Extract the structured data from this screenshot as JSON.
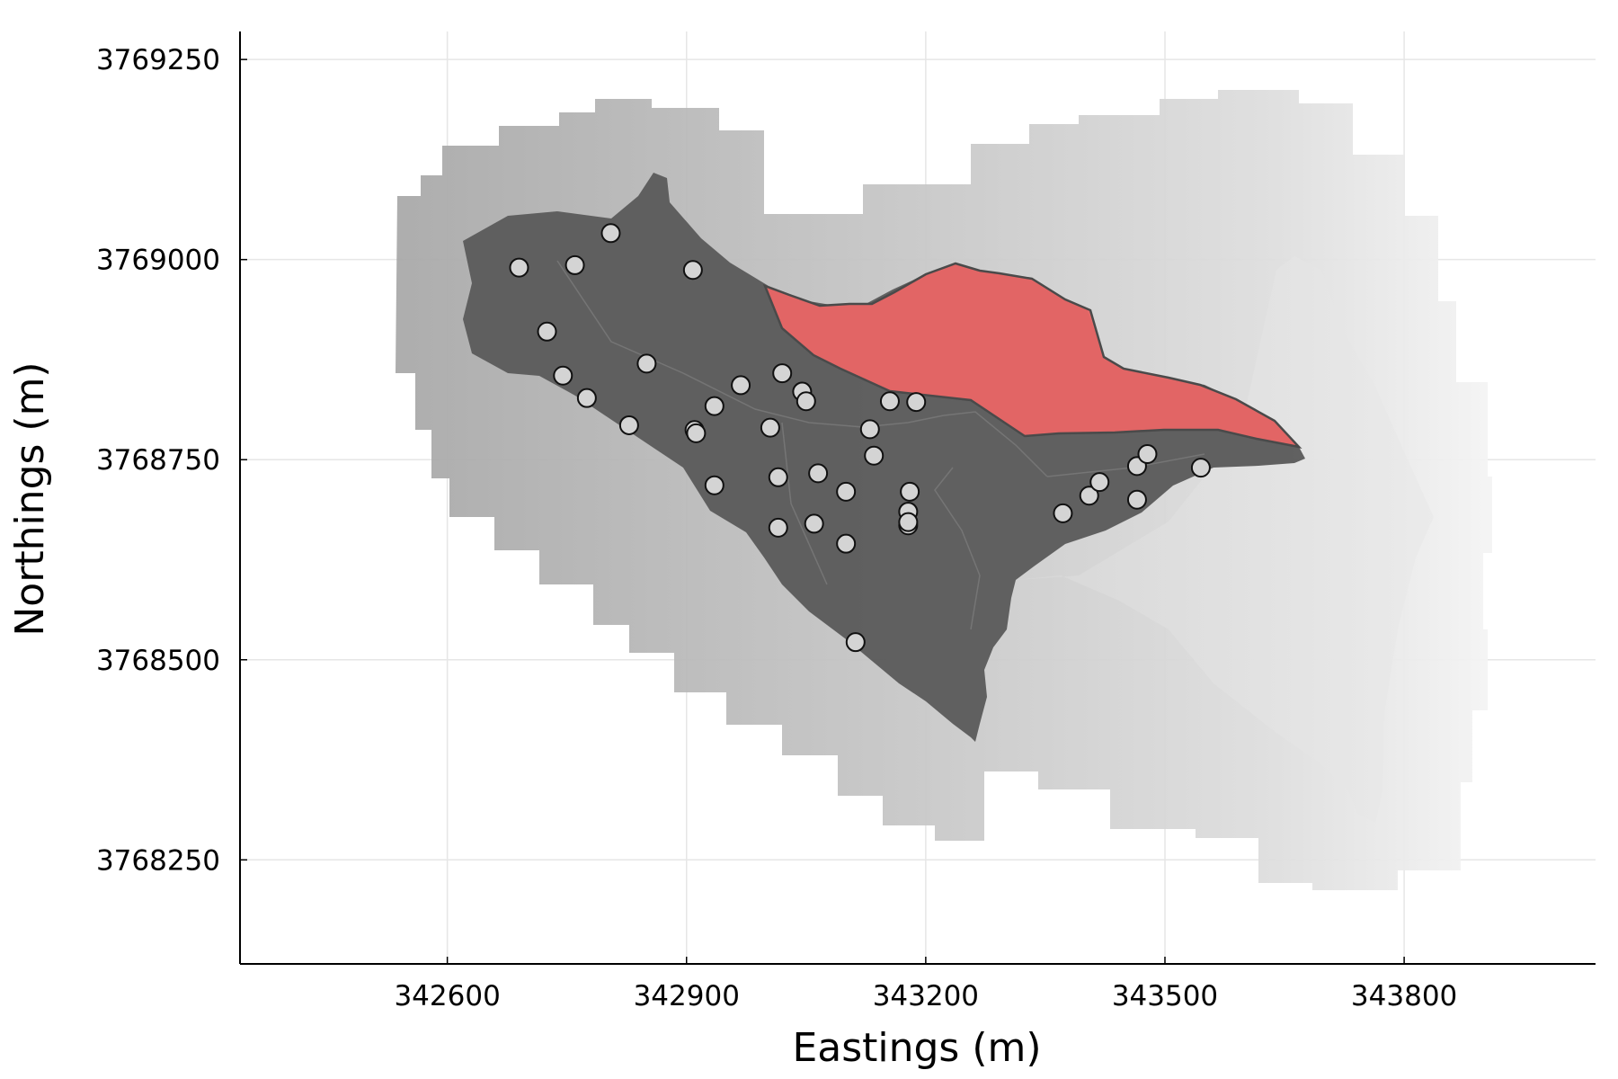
{
  "chart_data": {
    "type": "scatter",
    "xlabel": "Eastings (m)",
    "ylabel": "Northings (m)",
    "xlim": [
      342340,
      344040
    ],
    "ylim": [
      3768120,
      3769285
    ],
    "xticks": [
      342600,
      342900,
      343200,
      343500,
      343800
    ],
    "yticks": [
      3768250,
      3768500,
      3768750,
      3769000,
      3769250
    ],
    "grid": true,
    "legend": "none",
    "colors": {
      "dem_gradient_dark": "#a9a9a9",
      "dem_gradient_light": "#f4f4f4",
      "basin_fill": "#5c5c5c",
      "subbasin_fill": "#e96565",
      "subbasin_stroke": "#4a4a4a",
      "point_fill": "#d4d4d4",
      "point_stroke": "#111111"
    },
    "points": [
      {
        "x": 342690,
        "y": 3768990
      },
      {
        "x": 342760,
        "y": 3768993
      },
      {
        "x": 342805,
        "y": 3769033
      },
      {
        "x": 342908,
        "y": 3768987
      },
      {
        "x": 342725,
        "y": 3768910
      },
      {
        "x": 342745,
        "y": 3768855
      },
      {
        "x": 342775,
        "y": 3768827
      },
      {
        "x": 342850,
        "y": 3768870
      },
      {
        "x": 342828,
        "y": 3768793
      },
      {
        "x": 342910,
        "y": 3768787
      },
      {
        "x": 342912,
        "y": 3768783
      },
      {
        "x": 342935,
        "y": 3768817
      },
      {
        "x": 342968,
        "y": 3768843
      },
      {
        "x": 342935,
        "y": 3768718
      },
      {
        "x": 343020,
        "y": 3768858
      },
      {
        "x": 343045,
        "y": 3768835
      },
      {
        "x": 343050,
        "y": 3768823
      },
      {
        "x": 343005,
        "y": 3768790
      },
      {
        "x": 343015,
        "y": 3768728
      },
      {
        "x": 343015,
        "y": 3768665
      },
      {
        "x": 343065,
        "y": 3768733
      },
      {
        "x": 343060,
        "y": 3768670
      },
      {
        "x": 343100,
        "y": 3768710
      },
      {
        "x": 343100,
        "y": 3768645
      },
      {
        "x": 343130,
        "y": 3768788
      },
      {
        "x": 343135,
        "y": 3768755
      },
      {
        "x": 343155,
        "y": 3768823
      },
      {
        "x": 343188,
        "y": 3768822
      },
      {
        "x": 343180,
        "y": 3768710
      },
      {
        "x": 343178,
        "y": 3768685
      },
      {
        "x": 343178,
        "y": 3768668
      },
      {
        "x": 343178,
        "y": 3768672
      },
      {
        "x": 343112,
        "y": 3768522
      },
      {
        "x": 343372,
        "y": 3768683
      },
      {
        "x": 343405,
        "y": 3768705
      },
      {
        "x": 343418,
        "y": 3768722
      },
      {
        "x": 343465,
        "y": 3768742
      },
      {
        "x": 343478,
        "y": 3768757
      },
      {
        "x": 343465,
        "y": 3768700
      },
      {
        "x": 343545,
        "y": 3768740
      }
    ]
  }
}
